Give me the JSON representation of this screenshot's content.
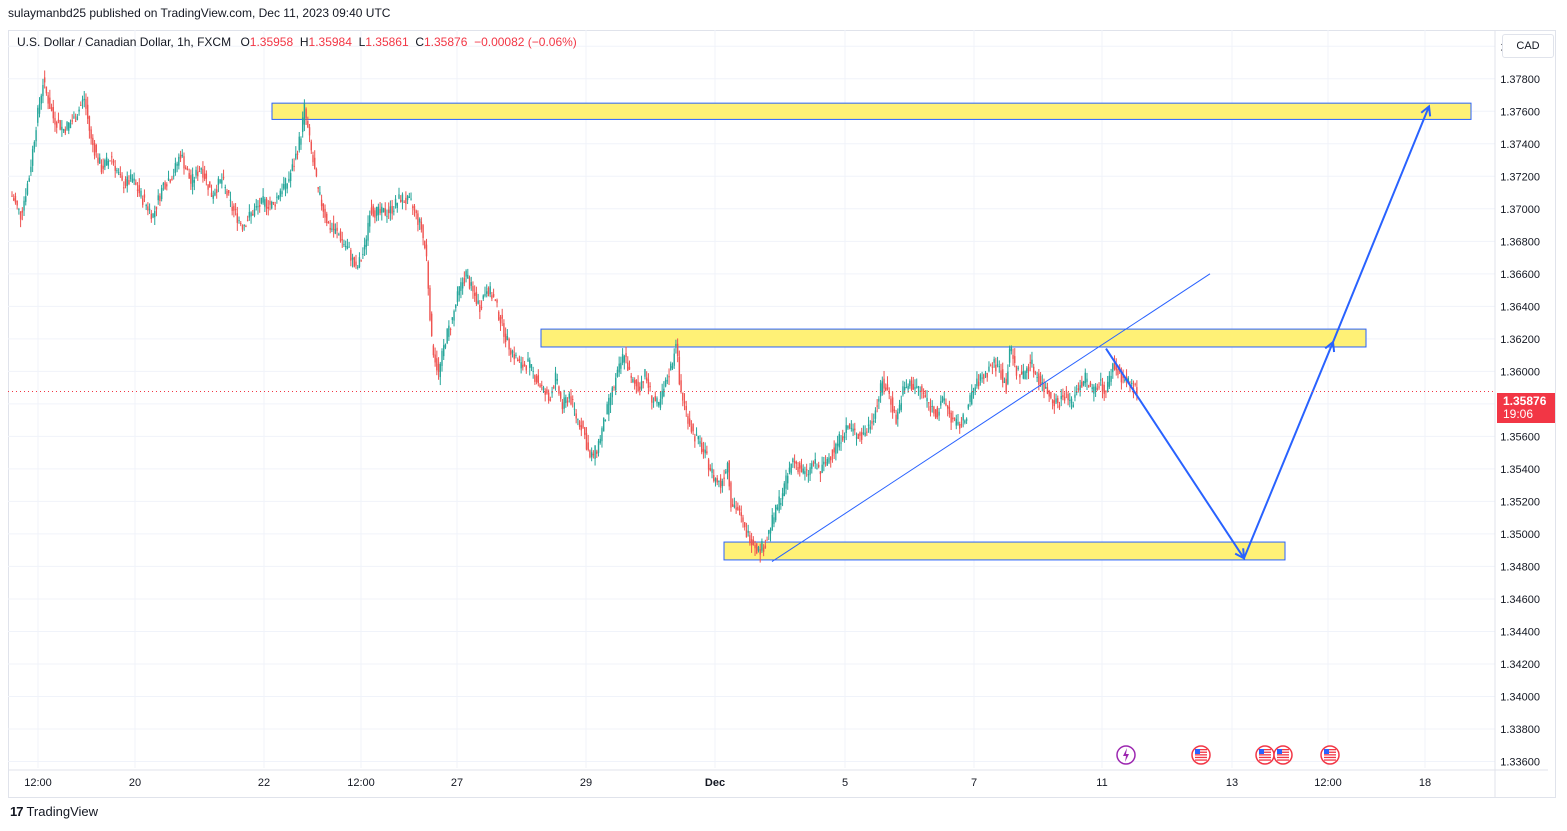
{
  "header": {
    "publisher_line": "sulaymanbd25 published on TradingView.com, Dec 11, 2023 09:40 UTC"
  },
  "legend": {
    "symbol": "U.S. Dollar / Canadian Dollar, 1h, FXCM",
    "open_label": "O",
    "open": "1.35958",
    "high_label": "H",
    "high": "1.35984",
    "low_label": "L",
    "low": "1.35861",
    "close_label": "C",
    "close": "1.35876",
    "change": "−0.00082 (−0.06%)"
  },
  "price_axis": {
    "currency": "CAD",
    "last_price": "1.35876",
    "countdown": "19:06"
  },
  "footer": {
    "brand": "TradingView"
  },
  "colors": {
    "up": "#26a69a",
    "down": "#ef5350",
    "zone_fill": "#fff176",
    "zone_border": "#2962ff",
    "projection": "#2962ff",
    "last_price": "#f23645",
    "grid": "#f0f3fa"
  },
  "chart_data": {
    "type": "candlestick",
    "ylim": [
      1.3356,
      1.381
    ],
    "y_ticks": [
      "1.38000",
      "1.37800",
      "1.37600",
      "1.37400",
      "1.37200",
      "1.37000",
      "1.36800",
      "1.36600",
      "1.36400",
      "1.36200",
      "1.36000",
      "1.35800",
      "1.35600",
      "1.35400",
      "1.35200",
      "1.35000",
      "1.34800",
      "1.34600",
      "1.34400",
      "1.34200",
      "1.34000",
      "1.33800",
      "1.33600"
    ],
    "x_ticks": [
      "12:00",
      "20",
      "22",
      "12:00",
      "27",
      "29",
      "Dec",
      "5",
      "7",
      "11",
      "13",
      "12:00",
      "18"
    ],
    "price_path": [
      [
        0,
        1.3708
      ],
      [
        5,
        1.3696
      ],
      [
        10,
        1.372
      ],
      [
        14,
        1.3752
      ],
      [
        18,
        1.3778
      ],
      [
        24,
        1.3756
      ],
      [
        30,
        1.3749
      ],
      [
        36,
        1.3755
      ],
      [
        42,
        1.3768
      ],
      [
        46,
        1.3742
      ],
      [
        52,
        1.3725
      ],
      [
        58,
        1.3732
      ],
      [
        64,
        1.3715
      ],
      [
        70,
        1.3718
      ],
      [
        76,
        1.3706
      ],
      [
        82,
        1.3696
      ],
      [
        88,
        1.3715
      ],
      [
        94,
        1.3722
      ],
      [
        98,
        1.3734
      ],
      [
        104,
        1.3716
      ],
      [
        110,
        1.3726
      ],
      [
        116,
        1.3709
      ],
      [
        122,
        1.3718
      ],
      [
        128,
        1.37
      ],
      [
        134,
        1.369
      ],
      [
        140,
        1.3698
      ],
      [
        146,
        1.3704
      ],
      [
        152,
        1.3702
      ],
      [
        156,
        1.3712
      ],
      [
        160,
        1.3716
      ],
      [
        164,
        1.3728
      ],
      [
        168,
        1.3746
      ],
      [
        170,
        1.3762
      ],
      [
        174,
        1.3735
      ],
      [
        178,
        1.371
      ],
      [
        184,
        1.369
      ],
      [
        190,
        1.3684
      ],
      [
        196,
        1.3674
      ],
      [
        200,
        1.3662
      ],
      [
        205,
        1.3675
      ],
      [
        208,
        1.37
      ],
      [
        214,
        1.3697
      ],
      [
        220,
        1.3699
      ],
      [
        226,
        1.3707
      ],
      [
        232,
        1.3703
      ],
      [
        238,
        1.3688
      ],
      [
        241,
        1.367
      ],
      [
        244,
        1.3618
      ],
      [
        248,
        1.3598
      ],
      [
        252,
        1.362
      ],
      [
        256,
        1.3632
      ],
      [
        260,
        1.365
      ],
      [
        264,
        1.366
      ],
      [
        268,
        1.3648
      ],
      [
        272,
        1.364
      ],
      [
        276,
        1.3652
      ],
      [
        280,
        1.3645
      ],
      [
        284,
        1.3632
      ],
      [
        288,
        1.3618
      ],
      [
        292,
        1.361
      ],
      [
        296,
        1.3603
      ],
      [
        300,
        1.3605
      ],
      [
        304,
        1.3597
      ],
      [
        308,
        1.359
      ],
      [
        312,
        1.3582
      ],
      [
        316,
        1.3596
      ],
      [
        320,
        1.3578
      ],
      [
        324,
        1.3586
      ],
      [
        328,
        1.3572
      ],
      [
        332,
        1.3565
      ],
      [
        336,
        1.3546
      ],
      [
        340,
        1.3552
      ],
      [
        344,
        1.3568
      ],
      [
        348,
        1.3584
      ],
      [
        352,
        1.3598
      ],
      [
        356,
        1.3612
      ],
      [
        360,
        1.3594
      ],
      [
        364,
        1.359
      ],
      [
        368,
        1.3598
      ],
      [
        372,
        1.3584
      ],
      [
        376,
        1.3578
      ],
      [
        380,
        1.3592
      ],
      [
        384,
        1.3606
      ],
      [
        386,
        1.362
      ],
      [
        388,
        1.3592
      ],
      [
        392,
        1.3575
      ],
      [
        396,
        1.3562
      ],
      [
        400,
        1.3555
      ],
      [
        404,
        1.3546
      ],
      [
        408,
        1.3535
      ],
      [
        412,
        1.353
      ],
      [
        416,
        1.3544
      ],
      [
        418,
        1.352
      ],
      [
        422,
        1.3515
      ],
      [
        426,
        1.3502
      ],
      [
        430,
        1.3497
      ],
      [
        434,
        1.349
      ],
      [
        438,
        1.3494
      ],
      [
        442,
        1.3508
      ],
      [
        446,
        1.352
      ],
      [
        450,
        1.3532
      ],
      [
        454,
        1.3546
      ],
      [
        458,
        1.354
      ],
      [
        462,
        1.3536
      ],
      [
        466,
        1.3544
      ],
      [
        470,
        1.3538
      ],
      [
        474,
        1.3546
      ],
      [
        478,
        1.3552
      ],
      [
        482,
        1.356
      ],
      [
        486,
        1.3566
      ],
      [
        490,
        1.3562
      ],
      [
        494,
        1.356
      ],
      [
        498,
        1.3566
      ],
      [
        502,
        1.3576
      ],
      [
        506,
        1.3593
      ],
      [
        510,
        1.3586
      ],
      [
        514,
        1.357
      ],
      [
        518,
        1.3588
      ],
      [
        522,
        1.3592
      ],
      [
        526,
        1.359
      ],
      [
        530,
        1.3586
      ],
      [
        534,
        1.3578
      ],
      [
        538,
        1.3574
      ],
      [
        542,
        1.3583
      ],
      [
        546,
        1.3571
      ],
      [
        550,
        1.3566
      ],
      [
        554,
        1.3571
      ],
      [
        558,
        1.3586
      ],
      [
        562,
        1.3594
      ],
      [
        566,
        1.3598
      ],
      [
        570,
        1.3605
      ],
      [
        574,
        1.3602
      ],
      [
        578,
        1.359
      ],
      [
        580,
        1.3615
      ],
      [
        584,
        1.36
      ],
      [
        588,
        1.3598
      ],
      [
        592,
        1.3606
      ],
      [
        596,
        1.3597
      ],
      [
        600,
        1.359
      ],
      [
        604,
        1.3585
      ],
      [
        608,
        1.358
      ],
      [
        612,
        1.3586
      ],
      [
        616,
        1.358
      ],
      [
        620,
        1.3591
      ],
      [
        624,
        1.3596
      ],
      [
        628,
        1.3588
      ],
      [
        632,
        1.3594
      ],
      [
        636,
        1.3587
      ],
      [
        640,
        1.3604
      ],
      [
        644,
        1.3598
      ],
      [
        648,
        1.3594
      ],
      [
        652,
        1.359
      ],
      [
        654,
        1.3588
      ]
    ],
    "zones": [
      {
        "y1": 1.3755,
        "y2": 1.3765
      },
      {
        "y1": 1.3615,
        "y2": 1.3626
      },
      {
        "y1": 1.3484,
        "y2": 1.3495
      }
    ],
    "trendline": [
      [
        1.3483,
        1.366
      ]
    ],
    "projection": [
      1.3614,
      1.3485,
      1.3618,
      1.3763
    ],
    "event_markers": [
      "lightning",
      "us-flag",
      "us-flag",
      "us-flag",
      "us-flag"
    ]
  }
}
